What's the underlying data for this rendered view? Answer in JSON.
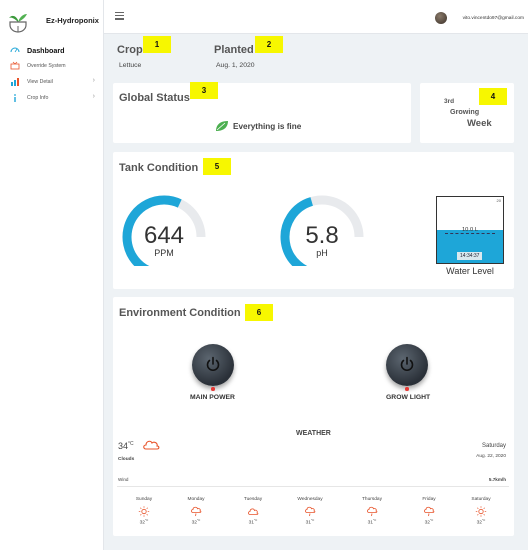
{
  "app": {
    "name": "Ez-Hydroponix"
  },
  "sidebar": {
    "items": [
      {
        "label": "Dashboard",
        "icon": "dashboard-icon"
      },
      {
        "label": "Override System",
        "icon": "override-icon"
      },
      {
        "label": "View Detail",
        "icon": "bar-chart-icon"
      },
      {
        "label": "Crop Info",
        "icon": "info-icon"
      }
    ]
  },
  "topbar": {
    "email": "vito.vincentdo97@gmail.com"
  },
  "crop": {
    "label": "Crop",
    "value": "Lettuce"
  },
  "planted": {
    "label": "Planted",
    "value": "Aug. 1, 2020"
  },
  "markers": [
    "1",
    "2",
    "3",
    "4",
    "5",
    "6"
  ],
  "global_status": {
    "title": "Global Status",
    "text": "Everything is fine"
  },
  "growing_week": {
    "number": "3rd",
    "line1": "Growing",
    "line2": "Week"
  },
  "tank": {
    "title": "Tank Condition",
    "ppm": {
      "value": "644",
      "unit": "PPM",
      "fraction": 0.64
    },
    "ph": {
      "value": "5.8",
      "unit": "pH",
      "fraction": 0.41
    },
    "water": {
      "level_text": "10.0 L",
      "time": "14:34:37",
      "full_mark": "20",
      "fraction": 0.5,
      "label": "Water Level"
    }
  },
  "environment": {
    "title": "Environment Condition",
    "main_power": "MAIN POWER",
    "grow_light": "GROW LIGHT"
  },
  "weather": {
    "title": "WEATHER",
    "temp": "34",
    "unit": "°C",
    "condition": "Clouds",
    "day": "Saturday",
    "date": "Aug. 22, 2020",
    "wind_label": "Wind",
    "wind_value": "5.7km/h",
    "forecast": [
      {
        "day": "Sunday",
        "temp": "32",
        "unit": "°C",
        "icon": "sun-icon"
      },
      {
        "day": "Monday",
        "temp": "32",
        "unit": "°C",
        "icon": "rain-cloud-icon"
      },
      {
        "day": "Tuesday",
        "temp": "31",
        "unit": "°C",
        "icon": "cloud-icon"
      },
      {
        "day": "Wednesday",
        "temp": "31",
        "unit": "°C",
        "icon": "rain-cloud-icon"
      },
      {
        "day": "Thursday",
        "temp": "31",
        "unit": "°C",
        "icon": "rain-cloud-icon"
      },
      {
        "day": "Friday",
        "temp": "32",
        "unit": "°C",
        "icon": "rain-cloud-icon"
      },
      {
        "day": "Saturday",
        "temp": "32",
        "unit": "°C",
        "icon": "sun-icon"
      }
    ]
  },
  "colors": {
    "accent": "#1ea6d8",
    "gauge_track": "#e8eaed",
    "marker": "#f7f700",
    "weather_icon": "#e8542b",
    "leaf": "#4caf50",
    "led": "#e53935"
  }
}
